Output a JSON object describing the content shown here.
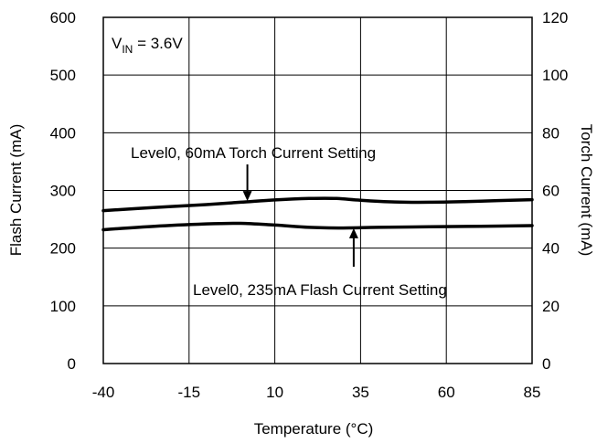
{
  "chart_data": {
    "type": "line",
    "xlabel": "Temperature (°C)",
    "ylabel": "Flash Current (mA)",
    "y2label": "Torch Current (mA)",
    "xlim": [
      -40,
      85
    ],
    "ylim": [
      0,
      600
    ],
    "y2lim": [
      0,
      120
    ],
    "x_ticks": [
      "-40",
      "-15",
      "10",
      "35",
      "60",
      "85"
    ],
    "y_ticks": [
      "0",
      "100",
      "200",
      "300",
      "400",
      "500",
      "600"
    ],
    "y2_ticks": [
      "0",
      "20",
      "40",
      "60",
      "80",
      "100",
      "120"
    ],
    "grid": true,
    "condition": {
      "prefix": "V",
      "subscript": "IN",
      "suffix": " = 3.6V"
    },
    "series": [
      {
        "name": "Level0, 60mA Torch Current Setting",
        "axis": "right",
        "x": [
          -40,
          -25,
          -10,
          0,
          10,
          20,
          28,
          35,
          45,
          55,
          65,
          75,
          85
        ],
        "values": [
          53,
          54.1,
          55.1,
          55.9,
          56.7,
          57.2,
          57.2,
          56.6,
          56,
          55.9,
          56.1,
          56.5,
          56.8
        ]
      },
      {
        "name": "Level0, 235mA Flash Current Setting",
        "axis": "left",
        "x": [
          -40,
          -25,
          -10,
          0,
          10,
          20,
          30,
          40,
          55,
          70,
          85
        ],
        "values": [
          232,
          238,
          242,
          243,
          240,
          236,
          235,
          236,
          237,
          238,
          239
        ]
      }
    ],
    "annotations": [
      {
        "text": "Level0, 60mA Torch Current Setting",
        "arrow_x": 2,
        "arrow_y": 280,
        "direction": "down"
      },
      {
        "text": "Level0, 235mA Flash Current Setting",
        "arrow_x": 33,
        "arrow_y": 236,
        "direction": "up"
      }
    ]
  }
}
